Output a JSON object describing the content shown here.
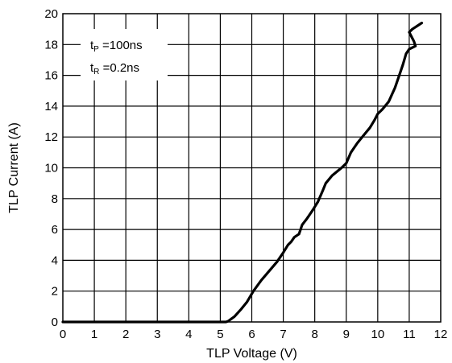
{
  "chart_data": {
    "type": "line",
    "title": "",
    "xlabel": "TLP Voltage (V)",
    "ylabel": "TLP Current (A)",
    "xlim": [
      0,
      12
    ],
    "ylim": [
      0,
      20
    ],
    "x_ticks": [
      "0",
      "1",
      "2",
      "3",
      "4",
      "5",
      "6",
      "7",
      "8",
      "9",
      "10",
      "11",
      "12"
    ],
    "y_ticks": [
      "0",
      "2",
      "4",
      "6",
      "8",
      "10",
      "12",
      "14",
      "16",
      "18",
      "20"
    ],
    "grid": true,
    "legend": "none",
    "annotation": {
      "line1": {
        "main": "t",
        "sub": "P",
        "rest": " =100ns"
      },
      "line2": {
        "main": "t",
        "sub": "R",
        "rest": " =0.2ns"
      }
    },
    "series": [
      {
        "color": "#000000",
        "points": [
          [
            0,
            0
          ],
          [
            5.18,
            0
          ],
          [
            5.25,
            0.05
          ],
          [
            5.45,
            0.35
          ],
          [
            5.65,
            0.8
          ],
          [
            5.85,
            1.3
          ],
          [
            6.05,
            2.0
          ],
          [
            6.3,
            2.7
          ],
          [
            6.55,
            3.3
          ],
          [
            6.8,
            3.9
          ],
          [
            7.0,
            4.5
          ],
          [
            7.15,
            5.0
          ],
          [
            7.25,
            5.2
          ],
          [
            7.35,
            5.5
          ],
          [
            7.5,
            5.7
          ],
          [
            7.6,
            6.3
          ],
          [
            7.75,
            6.7
          ],
          [
            7.95,
            7.3
          ],
          [
            8.1,
            7.8
          ],
          [
            8.25,
            8.5
          ],
          [
            8.35,
            9.0
          ],
          [
            8.55,
            9.5
          ],
          [
            8.85,
            10.0
          ],
          [
            9.0,
            10.3
          ],
          [
            9.15,
            11.0
          ],
          [
            9.35,
            11.6
          ],
          [
            9.55,
            12.1
          ],
          [
            9.75,
            12.6
          ],
          [
            9.9,
            13.1
          ],
          [
            10.0,
            13.5
          ],
          [
            10.15,
            13.8
          ],
          [
            10.35,
            14.3
          ],
          [
            10.55,
            15.2
          ],
          [
            10.7,
            16.1
          ],
          [
            10.8,
            16.7
          ],
          [
            10.9,
            17.4
          ],
          [
            11.0,
            17.7
          ],
          [
            11.2,
            17.9
          ],
          [
            11.15,
            18.2
          ],
          [
            11.0,
            18.8
          ],
          [
            11.1,
            19.0
          ],
          [
            11.4,
            19.4
          ]
        ]
      }
    ]
  }
}
